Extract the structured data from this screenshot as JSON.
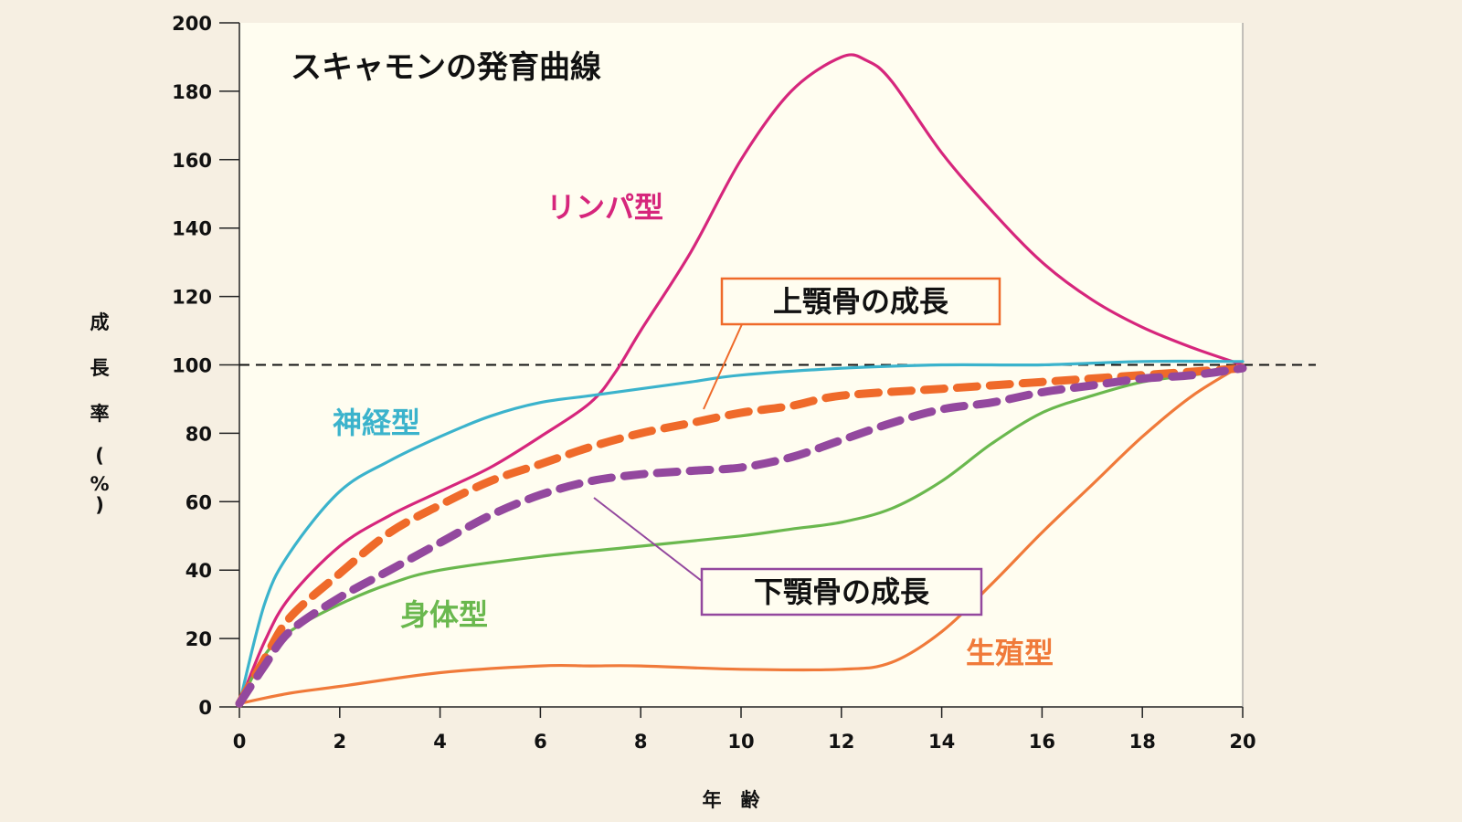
{
  "chart_data": {
    "type": "line",
    "title": "スキャモンの発育曲線",
    "xlabel": "年　齢",
    "ylabel": "成長率（%）",
    "xlim": [
      0,
      20
    ],
    "ylim": [
      0,
      200
    ],
    "x_ticks": [
      0,
      2,
      4,
      6,
      8,
      10,
      12,
      14,
      16,
      18,
      20
    ],
    "y_ticks": [
      0,
      20,
      40,
      60,
      80,
      100,
      120,
      140,
      160,
      180,
      200
    ],
    "reference_line": {
      "y": 100,
      "style": "dashed"
    },
    "grid": false,
    "series": [
      {
        "name": "リンパ型",
        "color": "#d6267c",
        "style": "solid",
        "points": [
          [
            0,
            1
          ],
          [
            0.5,
            19
          ],
          [
            1,
            32
          ],
          [
            2,
            47
          ],
          [
            3,
            56
          ],
          [
            4,
            63
          ],
          [
            5,
            70
          ],
          [
            6,
            79
          ],
          [
            7,
            89
          ],
          [
            7.5,
            98
          ],
          [
            8,
            110
          ],
          [
            9,
            133
          ],
          [
            10,
            160
          ],
          [
            11,
            180
          ],
          [
            12,
            190
          ],
          [
            12.5,
            189
          ],
          [
            13,
            183
          ],
          [
            14,
            162
          ],
          [
            15,
            145
          ],
          [
            16,
            130
          ],
          [
            17,
            119
          ],
          [
            18,
            111
          ],
          [
            19,
            105
          ],
          [
            20,
            100
          ]
        ]
      },
      {
        "name": "神経型",
        "color": "#3bb3cc",
        "style": "solid",
        "points": [
          [
            0,
            1
          ],
          [
            0.5,
            30
          ],
          [
            1,
            45
          ],
          [
            2,
            63
          ],
          [
            3,
            72
          ],
          [
            4,
            79
          ],
          [
            5,
            85
          ],
          [
            6,
            89
          ],
          [
            7,
            91
          ],
          [
            8,
            93
          ],
          [
            9,
            95
          ],
          [
            10,
            97
          ],
          [
            12,
            99
          ],
          [
            14,
            100
          ],
          [
            16,
            100
          ],
          [
            18,
            101
          ],
          [
            20,
            101
          ]
        ]
      },
      {
        "name": "身体型",
        "color": "#6ab84e",
        "style": "solid",
        "points": [
          [
            0,
            1
          ],
          [
            0.5,
            15
          ],
          [
            1,
            22
          ],
          [
            2,
            30
          ],
          [
            3,
            36
          ],
          [
            4,
            40
          ],
          [
            6,
            44
          ],
          [
            8,
            47
          ],
          [
            10,
            50
          ],
          [
            11,
            52
          ],
          [
            12,
            54
          ],
          [
            13,
            58
          ],
          [
            14,
            66
          ],
          [
            15,
            77
          ],
          [
            16,
            86
          ],
          [
            17,
            91
          ],
          [
            18,
            95
          ],
          [
            19,
            97
          ],
          [
            20,
            99
          ]
        ]
      },
      {
        "name": "生殖型",
        "color": "#f07a3a",
        "style": "solid",
        "points": [
          [
            0,
            1
          ],
          [
            1,
            4
          ],
          [
            2,
            6
          ],
          [
            4,
            10
          ],
          [
            6,
            12
          ],
          [
            7,
            12
          ],
          [
            8,
            12
          ],
          [
            10,
            11
          ],
          [
            12,
            11
          ],
          [
            13,
            13
          ],
          [
            14,
            22
          ],
          [
            15,
            36
          ],
          [
            16,
            51
          ],
          [
            17,
            65
          ],
          [
            18,
            79
          ],
          [
            19,
            91
          ],
          [
            20,
            100
          ]
        ]
      },
      {
        "name": "上顎骨の成長",
        "color": "#ef6a2a",
        "style": "dashed",
        "points": [
          [
            0,
            1
          ],
          [
            0.5,
            14
          ],
          [
            1,
            26
          ],
          [
            2,
            39
          ],
          [
            3,
            51
          ],
          [
            4,
            59
          ],
          [
            5,
            66
          ],
          [
            6,
            71
          ],
          [
            7,
            76
          ],
          [
            8,
            80
          ],
          [
            9,
            83
          ],
          [
            10,
            86
          ],
          [
            11,
            88
          ],
          [
            12,
            91
          ],
          [
            14,
            93
          ],
          [
            16,
            95
          ],
          [
            18,
            97
          ],
          [
            20,
            99
          ]
        ]
      },
      {
        "name": "下顎骨の成長",
        "color": "#93489e",
        "style": "dashed",
        "points": [
          [
            0,
            1
          ],
          [
            0.5,
            12
          ],
          [
            1,
            22
          ],
          [
            2,
            32
          ],
          [
            3,
            40
          ],
          [
            4,
            48
          ],
          [
            5,
            56
          ],
          [
            6,
            62
          ],
          [
            7,
            66
          ],
          [
            8,
            68
          ],
          [
            9,
            69
          ],
          [
            10,
            70
          ],
          [
            11,
            73
          ],
          [
            12,
            78
          ],
          [
            13,
            83
          ],
          [
            14,
            87
          ],
          [
            15,
            89
          ],
          [
            16,
            92
          ],
          [
            17,
            94
          ],
          [
            18,
            96
          ],
          [
            19,
            97
          ],
          [
            20,
            99
          ]
        ]
      }
    ],
    "labels": {
      "lymph": "リンパ型",
      "neural": "神経型",
      "general": "身体型",
      "reproductive": "生殖型",
      "maxilla": "上顎骨の成長",
      "mandible": "下顎骨の成長"
    }
  }
}
